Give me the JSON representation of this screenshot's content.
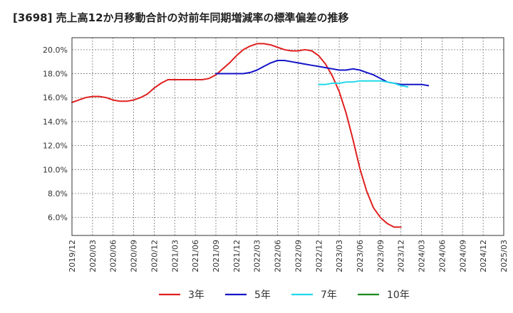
{
  "chart_data": {
    "type": "line",
    "title": "[3698]  売上高12か月移動合計の対前年同期増減率の標準偏差の推移",
    "xlabel": "",
    "ylabel": "",
    "ylim": [
      4.5,
      21.0
    ],
    "y_ticks": [
      6.0,
      8.0,
      10.0,
      12.0,
      14.0,
      16.0,
      18.0,
      20.0
    ],
    "y_tick_labels": [
      "6.0%",
      "8.0%",
      "10.0%",
      "12.0%",
      "14.0%",
      "16.0%",
      "18.0%",
      "20.0%"
    ],
    "x_tick_labels": [
      "2019/12",
      "2020/03",
      "2020/06",
      "2020/09",
      "2020/12",
      "2021/03",
      "2021/06",
      "2021/09",
      "2021/12",
      "2022/03",
      "2022/06",
      "2022/09",
      "2022/12",
      "2023/03",
      "2023/06",
      "2023/09",
      "2023/12",
      "2024/03",
      "2024/06",
      "2024/09",
      "2024/12",
      "2025/03"
    ],
    "grid": true,
    "legend_position": "bottom",
    "series": [
      {
        "name": "3年",
        "color": "#e02020",
        "points": [
          [
            0,
            15.6
          ],
          [
            1,
            15.8
          ],
          [
            2,
            16.0
          ],
          [
            3,
            16.1
          ],
          [
            4,
            16.1
          ],
          [
            5,
            16.0
          ],
          [
            6,
            15.8
          ],
          [
            7,
            15.7
          ],
          [
            8,
            15.7
          ],
          [
            9,
            15.8
          ],
          [
            10,
            16.0
          ],
          [
            11,
            16.3
          ],
          [
            12,
            16.8
          ],
          [
            13,
            17.2
          ],
          [
            14,
            17.5
          ],
          [
            15,
            17.5
          ],
          [
            16,
            17.5
          ],
          [
            17,
            17.5
          ],
          [
            18,
            17.5
          ],
          [
            19,
            17.5
          ],
          [
            20,
            17.6
          ],
          [
            21,
            17.9
          ],
          [
            22,
            18.4
          ],
          [
            23,
            18.9
          ],
          [
            24,
            19.5
          ],
          [
            25,
            20.0
          ],
          [
            26,
            20.3
          ],
          [
            27,
            20.5
          ],
          [
            28,
            20.5
          ],
          [
            29,
            20.4
          ],
          [
            30,
            20.2
          ],
          [
            31,
            20.0
          ],
          [
            32,
            19.9
          ],
          [
            33,
            19.9
          ],
          [
            34,
            20.0
          ],
          [
            35,
            19.9
          ],
          [
            36,
            19.5
          ],
          [
            37,
            18.8
          ],
          [
            38,
            17.8
          ],
          [
            39,
            16.5
          ],
          [
            40,
            14.7
          ],
          [
            41,
            12.5
          ],
          [
            42,
            10.1
          ],
          [
            43,
            8.2
          ],
          [
            44,
            6.8
          ],
          [
            45,
            6.0
          ],
          [
            46,
            5.5
          ],
          [
            47,
            5.2
          ],
          [
            48,
            5.2
          ]
        ]
      },
      {
        "name": "5年",
        "color": "#1414c8",
        "points": [
          [
            21,
            18.0
          ],
          [
            22,
            18.0
          ],
          [
            23,
            18.0
          ],
          [
            24,
            18.0
          ],
          [
            25,
            18.0
          ],
          [
            26,
            18.1
          ],
          [
            27,
            18.3
          ],
          [
            28,
            18.6
          ],
          [
            29,
            18.9
          ],
          [
            30,
            19.1
          ],
          [
            31,
            19.1
          ],
          [
            32,
            19.0
          ],
          [
            33,
            18.9
          ],
          [
            34,
            18.8
          ],
          [
            35,
            18.7
          ],
          [
            36,
            18.6
          ],
          [
            37,
            18.5
          ],
          [
            38,
            18.4
          ],
          [
            39,
            18.3
          ],
          [
            40,
            18.3
          ],
          [
            41,
            18.4
          ],
          [
            42,
            18.3
          ],
          [
            43,
            18.1
          ],
          [
            44,
            17.9
          ],
          [
            45,
            17.6
          ],
          [
            46,
            17.3
          ],
          [
            47,
            17.2
          ],
          [
            48,
            17.1
          ],
          [
            49,
            17.1
          ],
          [
            50,
            17.1
          ],
          [
            51,
            17.1
          ],
          [
            52,
            17.0
          ]
        ]
      },
      {
        "name": "7年",
        "color": "#22d8e8",
        "points": [
          [
            36,
            17.1
          ],
          [
            37,
            17.1
          ],
          [
            38,
            17.2
          ],
          [
            39,
            17.2
          ],
          [
            40,
            17.3
          ],
          [
            41,
            17.3
          ],
          [
            42,
            17.4
          ],
          [
            43,
            17.4
          ],
          [
            44,
            17.4
          ],
          [
            45,
            17.4
          ],
          [
            46,
            17.3
          ],
          [
            47,
            17.2
          ],
          [
            48,
            17.0
          ],
          [
            49,
            16.9
          ]
        ]
      },
      {
        "name": "10年",
        "color": "#1a8a1a",
        "points": []
      }
    ]
  }
}
